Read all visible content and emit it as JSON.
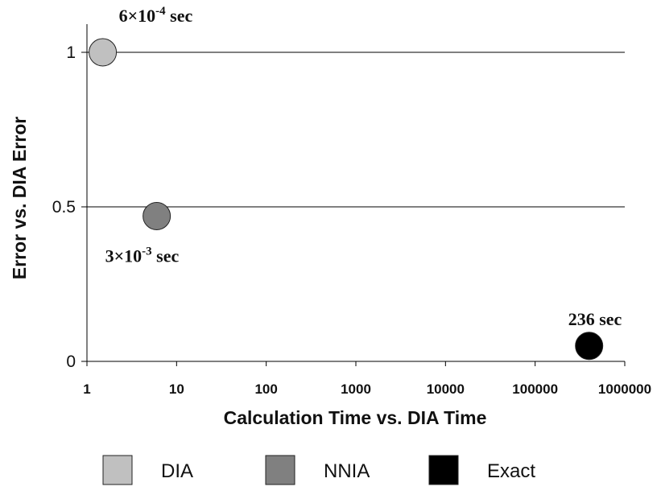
{
  "chart_data": {
    "type": "scatter",
    "xlabel": "Calculation Time vs. DIA Time",
    "ylabel": "Error vs. DIA Error",
    "x_scale": "log",
    "xlim": [
      1,
      1000000
    ],
    "ylim": [
      0,
      1
    ],
    "x_ticks": [
      "1",
      "10",
      "100",
      "1000",
      "10000",
      "100000",
      "1000000"
    ],
    "y_ticks": [
      "0",
      "0.5",
      "1"
    ],
    "grid": "horizontal",
    "legend_position": "bottom",
    "series": [
      {
        "name": "DIA",
        "color": "#c0c0c0",
        "points": [
          {
            "x": 1.5,
            "y": 1.0
          }
        ],
        "annotation": {
          "base": "6×10",
          "exp": "-4",
          "unit": " sec"
        }
      },
      {
        "name": "NNIA",
        "color": "#808080",
        "points": [
          {
            "x": 6,
            "y": 0.47
          }
        ],
        "annotation": {
          "base": "3×10",
          "exp": "-3",
          "unit": " sec"
        }
      },
      {
        "name": "Exact",
        "color": "#000000",
        "points": [
          {
            "x": 400000,
            "y": 0.05
          }
        ],
        "annotation": {
          "base": "236 sec",
          "exp": "",
          "unit": ""
        }
      }
    ]
  }
}
